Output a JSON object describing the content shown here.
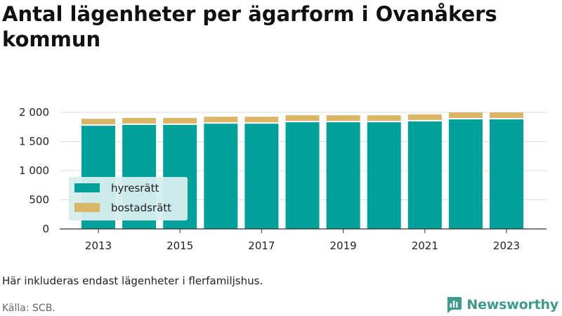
{
  "title": "Antal lägenheter per ägarform i Ovanåkers kommun",
  "note": "Här inkluderas endast lägenheter i flerfamiljshus.",
  "source": "Källa: SCB.",
  "brand": {
    "name": "Newsworthy",
    "icon": "newsworthy-logo-icon"
  },
  "colors": {
    "hyresratt": "#00a19a",
    "bostadsratt": "#dbb667",
    "brand": "#3d9b8c",
    "legend_bg": "#d7eeed"
  },
  "chart_data": {
    "type": "bar",
    "stacked": true,
    "x": [
      2013,
      2014,
      2015,
      2016,
      2017,
      2018,
      2019,
      2020,
      2021,
      2022,
      2023
    ],
    "x_tick_labels": [
      "2013",
      "2015",
      "2017",
      "2019",
      "2021",
      "2023"
    ],
    "series": [
      {
        "name": "hyresrätt",
        "color": "#00a19a",
        "values": [
          1770,
          1785,
          1785,
          1805,
          1805,
          1830,
          1830,
          1830,
          1845,
          1880,
          1880
        ]
      },
      {
        "name": "bostadsrätt",
        "color": "#dbb667",
        "values": [
          120,
          120,
          120,
          120,
          120,
          120,
          120,
          120,
          120,
          120,
          120
        ]
      }
    ],
    "ylim": [
      0,
      2000
    ],
    "y_ticks": [
      0,
      500,
      1000,
      1500,
      2000
    ],
    "y_tick_labels": [
      "0",
      "500",
      "1 000",
      "1 500",
      "2 000"
    ],
    "grid": "horizontal",
    "legend": {
      "position": "bottom-left",
      "entries": [
        "hyresrätt",
        "bostadsrätt"
      ]
    }
  }
}
